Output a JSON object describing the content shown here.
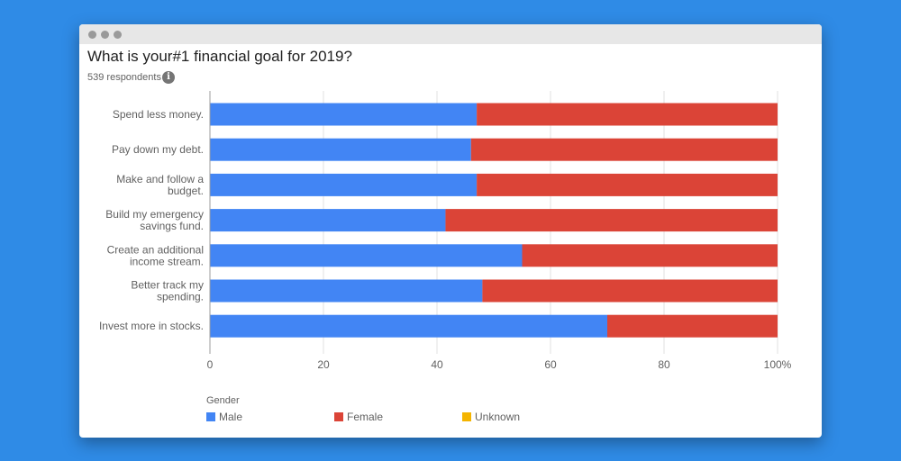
{
  "window": {
    "controls": [
      "close",
      "minimize",
      "maximize"
    ],
    "control_color": "#9a9a9a"
  },
  "header": {
    "title": "What is your#1 financial goal for 2019?",
    "subtitle": "539 respondents",
    "info_icon": "info-icon"
  },
  "chart_data": {
    "type": "bar",
    "orientation": "horizontal",
    "stacked": "percent",
    "title": "What is your#1 financial goal for 2019?",
    "subtitle": "539 respondents",
    "categories": [
      [
        "Spend less money."
      ],
      [
        "Pay down my debt."
      ],
      [
        "Make and follow a",
        "budget."
      ],
      [
        "Build my emergency",
        "savings fund."
      ],
      [
        "Create an additional",
        "income stream."
      ],
      [
        "Better track my",
        "spending."
      ],
      [
        "Invest more in stocks."
      ]
    ],
    "series": [
      {
        "name": "Male",
        "color": "#4285f4",
        "values": [
          47,
          46,
          47,
          41.5,
          55,
          48,
          70
        ]
      },
      {
        "name": "Female",
        "color": "#db4437",
        "values": [
          53,
          54,
          53,
          58.5,
          45,
          52,
          30
        ]
      },
      {
        "name": "Unknown",
        "color": "#f4b400",
        "values": [
          0,
          0,
          0,
          0,
          0,
          0,
          0
        ]
      }
    ],
    "xlim": [
      0,
      100
    ],
    "xticks": [
      "0",
      "20",
      "40",
      "60",
      "80",
      "100%"
    ],
    "grid": true,
    "legend": {
      "title": "Gender",
      "placement": "bottom-left"
    }
  }
}
